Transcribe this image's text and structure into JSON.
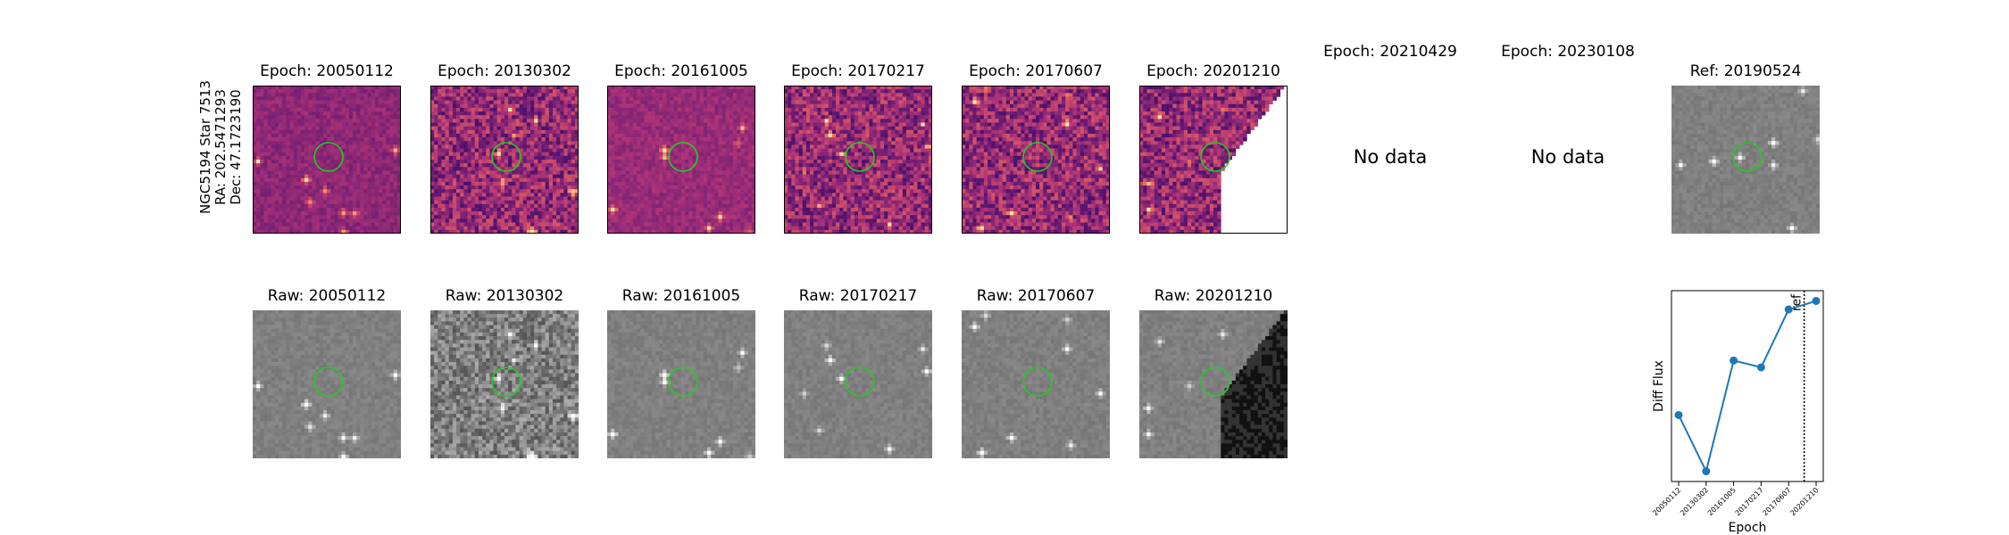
{
  "object": {
    "name": "NGC5194 Star 7513",
    "ra": "RA: 202.5471293",
    "dec": "Dec: 47.1723190"
  },
  "diff_panels": [
    {
      "title": "Epoch: 20050112",
      "has_data": true,
      "cmap": "magma",
      "variant": "dark-smooth"
    },
    {
      "title": "Epoch: 20130302",
      "has_data": true,
      "cmap": "magma",
      "variant": "noisy"
    },
    {
      "title": "Epoch: 20161005",
      "has_data": true,
      "cmap": "magma",
      "variant": "smooth"
    },
    {
      "title": "Epoch: 20170217",
      "has_data": true,
      "cmap": "magma",
      "variant": "noisy"
    },
    {
      "title": "Epoch: 20170607",
      "has_data": true,
      "cmap": "magma",
      "variant": "noisy"
    },
    {
      "title": "Epoch: 20201210",
      "has_data": true,
      "cmap": "magma",
      "variant": "noisy-clipped"
    },
    {
      "title": "Epoch: 20210429",
      "has_data": false,
      "nodata_text": "No data"
    },
    {
      "title": "Epoch: 20230108",
      "has_data": false,
      "nodata_text": "No data"
    }
  ],
  "ref_panel": {
    "title": "Ref: 20190524",
    "cmap": "gray"
  },
  "raw_panels": [
    {
      "title": "Raw: 20050112",
      "variant": "smooth"
    },
    {
      "title": "Raw: 20130302",
      "variant": "noisy"
    },
    {
      "title": "Raw: 20161005",
      "variant": "smooth"
    },
    {
      "title": "Raw: 20170217",
      "variant": "smooth"
    },
    {
      "title": "Raw: 20170607",
      "variant": "smooth"
    },
    {
      "title": "Raw: 20201210",
      "variant": "clipped"
    }
  ],
  "colors": {
    "aperture": "#22cc22",
    "series": "#1f77b4"
  },
  "chart_data": {
    "type": "line",
    "xlabel": "Epoch",
    "ylabel": "Diff Flux",
    "categories": [
      "20050112",
      "20130302",
      "20161005",
      "20170217",
      "20170607",
      "20201210"
    ],
    "values": [
      0.38,
      0.05,
      0.7,
      0.66,
      1.0,
      1.05
    ],
    "ref_line": {
      "label": "ref",
      "position_between": [
        "20170607",
        "20201210"
      ],
      "style": "dotted"
    },
    "y_ticks_shown": false,
    "grid": false
  }
}
